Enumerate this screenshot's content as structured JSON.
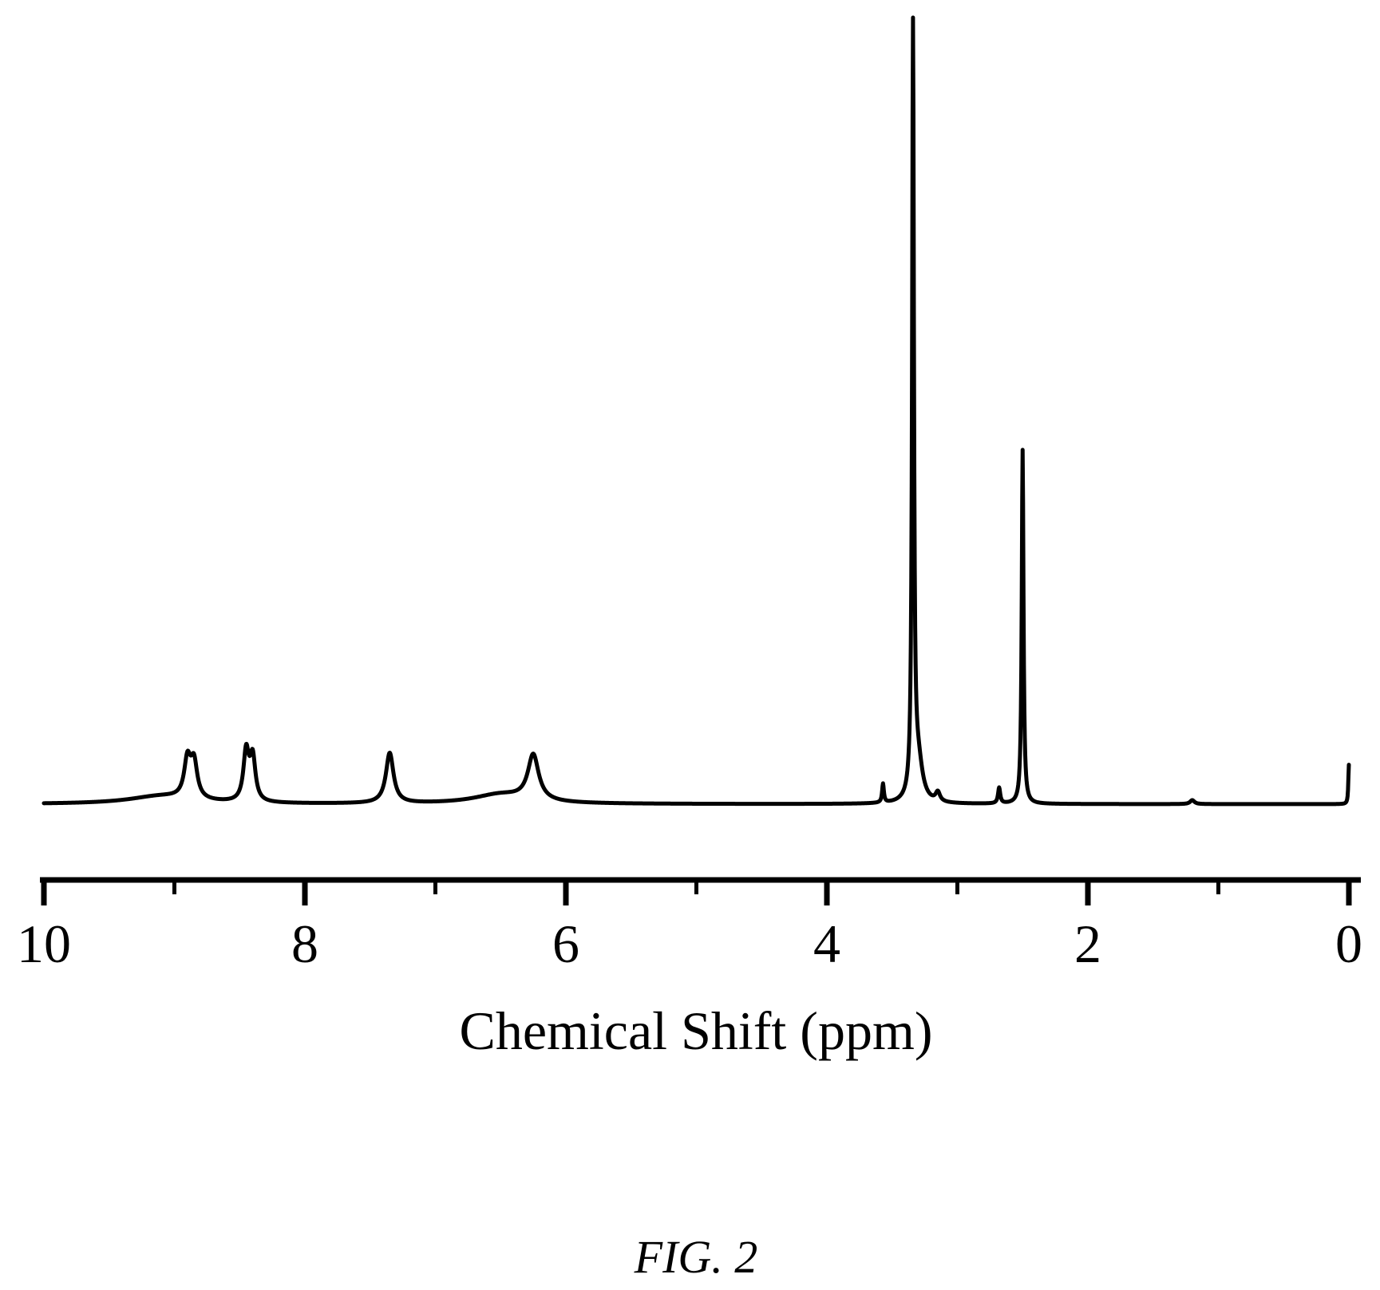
{
  "chart_data": {
    "type": "line",
    "title": "",
    "xlabel": "Chemical Shift (ppm)",
    "ylabel": "",
    "xlim": [
      10,
      0
    ],
    "x_reversed": true,
    "ylim": [
      0,
      1.0
    ],
    "x_major_ticks": [
      10,
      8,
      6,
      4,
      2,
      0
    ],
    "x_tick_labels": [
      "10",
      "8",
      "6",
      "4",
      "2",
      "0"
    ],
    "x_minor_ticks": [
      9,
      7,
      5,
      3,
      1
    ],
    "grid": false,
    "legend": "none",
    "peaks": [
      {
        "shift": 9.1,
        "height": 0.01,
        "width": 0.3
      },
      {
        "shift": 8.9,
        "height": 0.048,
        "width": 0.03
      },
      {
        "shift": 8.85,
        "height": 0.045,
        "width": 0.03
      },
      {
        "shift": 8.45,
        "height": 0.063,
        "width": 0.025
      },
      {
        "shift": 8.4,
        "height": 0.055,
        "width": 0.025
      },
      {
        "shift": 7.35,
        "height": 0.064,
        "width": 0.035
      },
      {
        "shift": 6.5,
        "height": 0.012,
        "width": 0.25
      },
      {
        "shift": 6.25,
        "height": 0.058,
        "width": 0.05
      },
      {
        "shift": 3.57,
        "height": 0.024,
        "width": 0.008
      },
      {
        "shift": 3.34,
        "height": 1.0,
        "width": 0.008
      },
      {
        "shift": 3.3,
        "height": 0.05,
        "width": 0.04
      },
      {
        "shift": 3.15,
        "height": 0.012,
        "width": 0.02
      },
      {
        "shift": 2.68,
        "height": 0.02,
        "width": 0.01
      },
      {
        "shift": 2.5,
        "height": 0.45,
        "width": 0.008
      },
      {
        "shift": 1.2,
        "height": 0.005,
        "width": 0.02
      },
      {
        "shift": 0.0,
        "height": 0.05,
        "width": 0.005
      }
    ]
  },
  "caption": "FIG. 2",
  "colors": {
    "line": "#000000",
    "background": "#ffffff"
  }
}
